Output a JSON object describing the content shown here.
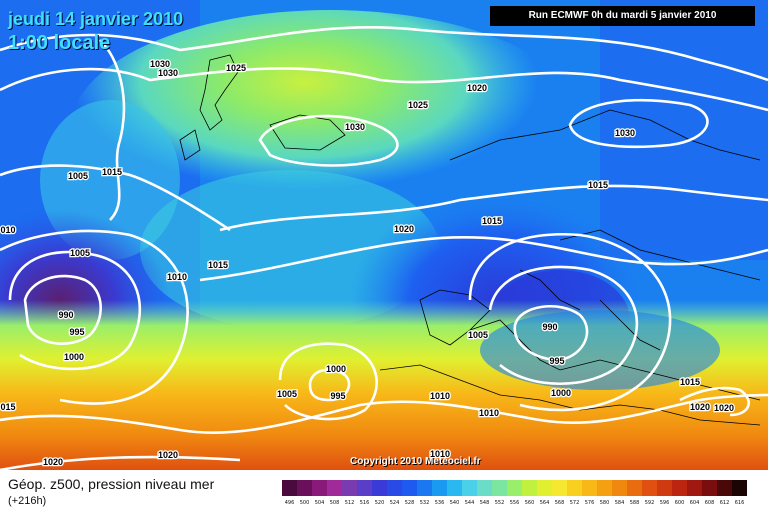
{
  "header": {
    "date_line": "jeudi 14 janvier 2010",
    "time_line": "1:00 locale",
    "run_info": "Run ECMWF 0h du mardi 5 janvier 2010"
  },
  "footer": {
    "title": "Géop. z500, pression niveau mer",
    "lead": "(+216h)",
    "copyright": "Copyright 2010 Meteociel.fr"
  },
  "map": {
    "isobar_labels": [
      {
        "text": "1030",
        "id": "1030-nw-a"
      },
      {
        "text": "1030",
        "id": "1030-nw-b"
      },
      {
        "text": "1025",
        "id": "1025-north"
      },
      {
        "text": "1020",
        "id": "1020-north"
      },
      {
        "text": "1025",
        "id": "1025-center"
      },
      {
        "text": "1030",
        "id": "1030-center"
      },
      {
        "text": "1030",
        "id": "1030-ne"
      },
      {
        "text": "1015",
        "id": "1015-ne"
      },
      {
        "text": "1005",
        "id": "1005-west"
      },
      {
        "text": "1015",
        "id": "1015-west"
      },
      {
        "text": "1020",
        "id": "1020-mid"
      },
      {
        "text": "1015",
        "id": "1015-mid"
      },
      {
        "text": "010",
        "id": "010-edge"
      },
      {
        "text": "1005",
        "id": "1005-sw"
      },
      {
        "text": "1010",
        "id": "1010-sw"
      },
      {
        "text": "1015",
        "id": "1015-sw"
      },
      {
        "text": "990",
        "id": "990-west"
      },
      {
        "text": "995",
        "id": "995-west"
      },
      {
        "text": "1000",
        "id": "1000-west"
      },
      {
        "text": "1005",
        "id": "1005-iberia"
      },
      {
        "text": "990",
        "id": "990-med"
      },
      {
        "text": "995",
        "id": "995-med"
      },
      {
        "text": "1000",
        "id": "1000-med"
      },
      {
        "text": "1000",
        "id": "1000-south"
      },
      {
        "text": "995",
        "id": "995-south"
      },
      {
        "text": "1005",
        "id": "1005-south"
      },
      {
        "text": "1010",
        "id": "1010-africa-a"
      },
      {
        "text": "1010",
        "id": "1010-africa-b"
      },
      {
        "text": "1015",
        "id": "1015-east"
      },
      {
        "text": "1020",
        "id": "1020-east-a"
      },
      {
        "text": "1020",
        "id": "1020-east-b"
      },
      {
        "text": "015",
        "id": "015-edge"
      },
      {
        "text": "1020",
        "id": "1020-bottom-a"
      },
      {
        "text": "1020",
        "id": "1020-bottom-b"
      },
      {
        "text": "1010",
        "id": "1010-bottom"
      }
    ]
  },
  "legend_scale": {
    "labels": [
      "496",
      "500",
      "504",
      "508",
      "512",
      "516",
      "520",
      "524",
      "528",
      "532",
      "536",
      "540",
      "544",
      "548",
      "552",
      "556",
      "560",
      "564",
      "568",
      "572",
      "576",
      "580",
      "584",
      "588",
      "592",
      "596",
      "600",
      "604",
      "608",
      "612",
      "616"
    ],
    "colors": [
      "#4a0a3e",
      "#6a0f5a",
      "#8a1a7a",
      "#a02a9a",
      "#7a3ab0",
      "#5a3ec8",
      "#3a3ad8",
      "#2a4ae6",
      "#1e5af0",
      "#1a78f0",
      "#1a9af0",
      "#2ab8f0",
      "#4ad0e8",
      "#6adcc8",
      "#7ae6a0",
      "#9aef6a",
      "#c0f040",
      "#e0f030",
      "#f6e830",
      "#fad020",
      "#f8b818",
      "#f4a010",
      "#f08810",
      "#ea6c10",
      "#e05010",
      "#d03a10",
      "#bc2610",
      "#a01810",
      "#7a0e0e",
      "#4a0808",
      "#1a0404"
    ]
  }
}
